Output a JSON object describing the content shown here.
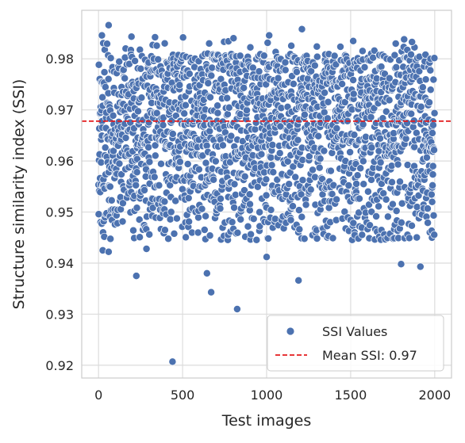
{
  "chart_data": {
    "type": "scatter",
    "title": "",
    "xlabel": "Test images",
    "ylabel": "Structure similarity index (SSI)",
    "xlim": [
      -100,
      2100
    ],
    "ylim": [
      0.9175,
      0.9895
    ],
    "x_ticks": [
      0,
      500,
      1000,
      1500,
      2000
    ],
    "x_tick_labels": [
      "0",
      "500",
      "1000",
      "1500",
      "2000"
    ],
    "y_ticks": [
      0.92,
      0.93,
      0.94,
      0.95,
      0.96,
      0.97,
      0.98
    ],
    "y_tick_labels": [
      "0.92",
      "0.93",
      "0.94",
      "0.95",
      "0.96",
      "0.97",
      "0.98"
    ],
    "grid": true,
    "legend_position": "lower-right",
    "series": [
      {
        "name": "SSI Values",
        "kind": "points",
        "color": "#4c72b0",
        "n_points": 2000,
        "x_range": [
          0,
          1999
        ],
        "mean": 0.9678,
        "notable_points": [
          {
            "x": 25,
            "y": 0.9425
          },
          {
            "x": 60,
            "y": 0.9422
          },
          {
            "x": 285,
            "y": 0.9428
          },
          {
            "x": 225,
            "y": 0.9375
          },
          {
            "x": 645,
            "y": 0.938
          },
          {
            "x": 670,
            "y": 0.9343
          },
          {
            "x": 825,
            "y": 0.931
          },
          {
            "x": 440,
            "y": 0.9207
          },
          {
            "x": 1190,
            "y": 0.9366
          },
          {
            "x": 1000,
            "y": 0.9412
          },
          {
            "x": 1800,
            "y": 0.9398
          },
          {
            "x": 1915,
            "y": 0.9393
          },
          {
            "x": 60,
            "y": 0.9866
          },
          {
            "x": 20,
            "y": 0.9846
          },
          {
            "x": 1015,
            "y": 0.9846
          },
          {
            "x": 1210,
            "y": 0.9858
          },
          {
            "x": 1515,
            "y": 0.9835
          },
          {
            "x": 1865,
            "y": 0.9833
          },
          {
            "x": 1985,
            "y": 0.952
          },
          {
            "x": 1990,
            "y": 0.959
          }
        ]
      },
      {
        "name": "Mean SSI: 0.97",
        "kind": "hline",
        "y": 0.9678,
        "color": "#e41a1c",
        "style": "dashed"
      }
    ]
  }
}
